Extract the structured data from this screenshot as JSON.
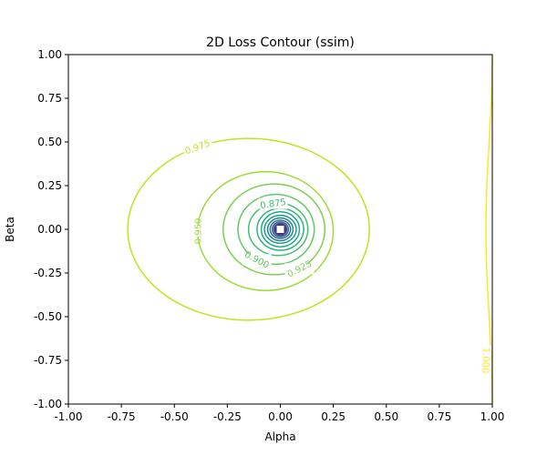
{
  "chart_data": {
    "type": "contour",
    "title": "2D Loss Contour (ssim)",
    "xlabel": "Alpha",
    "ylabel": "Beta",
    "xlim": [
      -1.0,
      1.0
    ],
    "ylim": [
      -1.0,
      1.0
    ],
    "xticks": [
      "-1.00",
      "-0.75",
      "-0.50",
      "-0.25",
      "0.00",
      "0.25",
      "0.50",
      "0.75",
      "1.00"
    ],
    "yticks": [
      "-1.00",
      "-0.75",
      "-0.50",
      "-0.25",
      "0.00",
      "0.25",
      "0.50",
      "0.75",
      "1.00"
    ],
    "grid": false,
    "colormap": "viridis",
    "minimum": {
      "x": 0.0,
      "y": 0.0
    },
    "levels": [
      {
        "value": 0.975,
        "label": "0.975",
        "color": "#c8e020",
        "center": [
          -0.15,
          0.0
        ],
        "rx": 0.57,
        "ry": 0.52
      },
      {
        "value": 0.95,
        "label": "0.950",
        "color": "#a0da39",
        "center": [
          -0.07,
          -0.01
        ],
        "rx": 0.32,
        "ry": 0.34
      },
      {
        "value": 0.925,
        "label": "0.925",
        "color": "#7ad151",
        "center": [
          -0.03,
          0.0
        ],
        "rx": 0.24,
        "ry": 0.26
      },
      {
        "value": 0.9,
        "label": "0.900",
        "color": "#5ec962",
        "center": [
          -0.02,
          0.0
        ],
        "rx": 0.18,
        "ry": 0.2
      },
      {
        "value": 0.875,
        "label": "0.875",
        "color": "#44bf70",
        "center": [
          -0.01,
          0.0
        ],
        "rx": 0.14,
        "ry": 0.15
      },
      {
        "value": 0.85,
        "label": "",
        "color": "#2fb47c",
        "center": [
          0.0,
          0.0
        ],
        "rx": 0.11,
        "ry": 0.12
      },
      {
        "value": 0.825,
        "label": "",
        "color": "#22a884",
        "center": [
          0.0,
          0.0
        ],
        "rx": 0.09,
        "ry": 0.1
      },
      {
        "value": 0.8,
        "label": "",
        "color": "#1f9e89",
        "center": [
          0.0,
          0.0
        ],
        "rx": 0.075,
        "ry": 0.08
      },
      {
        "value": 0.775,
        "label": "",
        "color": "#25858e",
        "center": [
          0.0,
          0.0
        ],
        "rx": 0.06,
        "ry": 0.065
      },
      {
        "value": 0.75,
        "label": "",
        "color": "#2c728e",
        "center": [
          0.0,
          0.0
        ],
        "rx": 0.048,
        "ry": 0.052
      },
      {
        "value": 0.725,
        "label": "",
        "color": "#365c8d",
        "center": [
          0.0,
          0.0
        ],
        "rx": 0.038,
        "ry": 0.042
      },
      {
        "value": 0.7,
        "label": "",
        "color": "#3f4788",
        "center": [
          0.0,
          0.0
        ],
        "rx": 0.03,
        "ry": 0.034
      },
      {
        "value": 0.675,
        "label": "",
        "color": "#46337e",
        "center": [
          0.0,
          0.0
        ],
        "rx": 0.024,
        "ry": 0.027
      },
      {
        "value": 0.65,
        "label": "",
        "color": "#481f70",
        "center": [
          0.0,
          0.0
        ],
        "rx": 0.019,
        "ry": 0.022
      }
    ],
    "edge_level": {
      "value": 1.0,
      "label": "1.000",
      "color": "#fde725"
    }
  }
}
